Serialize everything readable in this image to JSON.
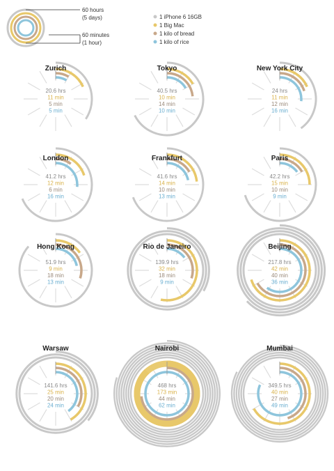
{
  "legend": {
    "outer_label_1": "60 hours",
    "outer_label_2": "(5 days)",
    "inner_label_1": "60 minutes",
    "inner_label_2": "(1 hour)",
    "items": [
      {
        "label": "1 iPhone 6 16GB",
        "color": "#c8c8c8"
      },
      {
        "label": "1 Big Mac",
        "color": "#e8c86a"
      },
      {
        "label": "1 kilo of bread",
        "color": "#c8a88a"
      },
      {
        "label": "1 kilo of rice",
        "color": "#8ec5dc"
      }
    ]
  },
  "chart_data": {
    "type": "radial-bar",
    "units": {
      "iphone": "hrs",
      "others": "min"
    },
    "series": [
      {
        "name": "1 iPhone 6 16GB",
        "color": "#c8c8c8"
      },
      {
        "name": "1 Big Mac",
        "color": "#e8c86a"
      },
      {
        "name": "1 kilo of bread",
        "color": "#c8a88a"
      },
      {
        "name": "1 kilo of rice",
        "color": "#8ec5dc"
      }
    ],
    "cities": [
      {
        "name": "Zurich",
        "iphone": 20.6,
        "bigmac": 11,
        "bread": 5,
        "rice": 5,
        "iphone_label": "20.6 hrs",
        "bigmac_label": "11 min",
        "bread_label": "5 min",
        "rice_label": "5 min"
      },
      {
        "name": "Tokyo",
        "iphone": 40.5,
        "bigmac": 10,
        "bread": 14,
        "rice": 10,
        "iphone_label": "40.5 hrs",
        "bigmac_label": "10 min",
        "bread_label": "14 min",
        "rice_label": "10 min"
      },
      {
        "name": "New York City",
        "iphone": 24,
        "bigmac": 11,
        "bread": 12,
        "rice": 16,
        "iphone_label": "24 hrs",
        "bigmac_label": "11 min",
        "bread_label": "12 min",
        "rice_label": "16 min"
      },
      {
        "name": "London",
        "iphone": 41.2,
        "bigmac": 12,
        "bread": 6,
        "rice": 16,
        "iphone_label": "41.2 hrs",
        "bigmac_label": "12 min",
        "bread_label": "6 min",
        "rice_label": "16 min"
      },
      {
        "name": "Frankfurt",
        "iphone": 41.6,
        "bigmac": 14,
        "bread": 10,
        "rice": 13,
        "iphone_label": "41.6 hrs",
        "bigmac_label": "14 min",
        "bread_label": "10 min",
        "rice_label": "13 min"
      },
      {
        "name": "Paris",
        "iphone": 42.2,
        "bigmac": 15,
        "bread": 10,
        "rice": 9,
        "iphone_label": "42.2 hrs",
        "bigmac_label": "15 min",
        "bread_label": "10 min",
        "rice_label": "9 min"
      },
      {
        "name": "Hong Kong",
        "iphone": 51.9,
        "bigmac": 9,
        "bread": 18,
        "rice": 13,
        "iphone_label": "51.9 hrs",
        "bigmac_label": "9 min",
        "bread_label": "18 min",
        "rice_label": "13 min"
      },
      {
        "name": "Rio de Janeiro",
        "iphone": 139.9,
        "bigmac": 32,
        "bread": 18,
        "rice": 9,
        "iphone_label": "139.9 hrs",
        "bigmac_label": "32 min",
        "bread_label": "18 min",
        "rice_label": "9 min"
      },
      {
        "name": "Beijing",
        "iphone": 217.8,
        "bigmac": 42,
        "bread": 40,
        "rice": 36,
        "iphone_label": "217.8 hrs",
        "bigmac_label": "42 min",
        "bread_label": "40 min",
        "rice_label": "36 min"
      },
      {
        "name": "Warsaw",
        "iphone": 141.6,
        "bigmac": 25,
        "bread": 20,
        "rice": 24,
        "iphone_label": "141.6 hrs",
        "bigmac_label": "25 min",
        "bread_label": "20 min",
        "rice_label": "24 min"
      },
      {
        "name": "Nairobi",
        "iphone": 468,
        "bigmac": 173,
        "bread": 44,
        "rice": 62,
        "iphone_label": "468 hrs",
        "bigmac_label": "173 min",
        "bread_label": "44 min",
        "rice_label": "62 min"
      },
      {
        "name": "Mumbai",
        "iphone": 349.5,
        "bigmac": 40,
        "bread": 27,
        "rice": 49,
        "iphone_label": "349.5 hrs",
        "bigmac_label": "40 min",
        "bread_label": "27 min",
        "rice_label": "49 min"
      }
    ]
  }
}
